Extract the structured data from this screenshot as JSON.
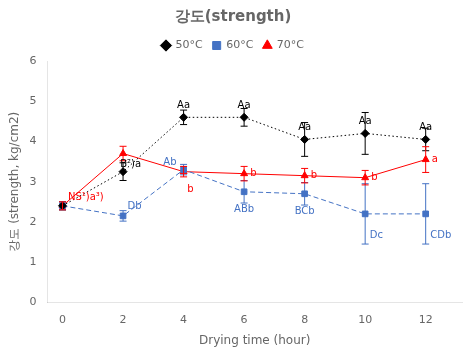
{
  "chart_data": {
    "type": "line",
    "title": "강도(strength)",
    "x_label": "Drying time (hour)",
    "y_label": "강도 (strength, kg/cm2)",
    "x": [
      0,
      2,
      4,
      6,
      8,
      10,
      12
    ],
    "series": [
      {
        "name": "50°C",
        "color": "#000000",
        "marker": "diamond",
        "line_style": "dotted",
        "values": [
          2.4,
          3.25,
          4.6,
          4.6,
          4.05,
          4.2,
          4.05
        ],
        "errors": [
          0.1,
          0.22,
          0.18,
          0.22,
          0.42,
          0.52,
          0.28
        ]
      },
      {
        "name": "60°C",
        "color": "#4472c4",
        "marker": "square",
        "line_style": "dashed",
        "values": [
          2.4,
          2.15,
          3.3,
          2.75,
          2.7,
          2.2,
          2.2
        ],
        "errors": [
          0.1,
          0.13,
          0.13,
          0.28,
          0.28,
          0.75,
          0.75
        ]
      },
      {
        "name": "70°C",
        "color": "#ff0000",
        "marker": "triangle",
        "line_style": "solid",
        "values": [
          2.4,
          3.7,
          3.25,
          3.2,
          3.15,
          3.1,
          3.55
        ],
        "errors": [
          0.1,
          0.18,
          0.13,
          0.18,
          0.18,
          0.18,
          0.32
        ]
      }
    ],
    "annotations": [
      {
        "text": "B²)a",
        "x": 2,
        "y": 3.25,
        "color": "#000000"
      },
      {
        "text": "Aa",
        "x": 4,
        "y": 4.6,
        "color": "#000000"
      },
      {
        "text": "Aa",
        "x": 6,
        "y": 4.6,
        "color": "#000000"
      },
      {
        "text": "Aa",
        "x": 8,
        "y": 4.05,
        "color": "#000000"
      },
      {
        "text": "Aa",
        "x": 10,
        "y": 4.2,
        "color": "#000000"
      },
      {
        "text": "Aa",
        "x": 12,
        "y": 4.05,
        "color": "#000000"
      },
      {
        "text": "Db",
        "x": 2,
        "y": 2.15,
        "color": "#4472c4"
      },
      {
        "text": "Ab",
        "x": 4,
        "y": 3.3,
        "color": "#4472c4"
      },
      {
        "text": "ABb",
        "x": 6,
        "y": 2.75,
        "color": "#4472c4"
      },
      {
        "text": "BCb",
        "x": 8,
        "y": 2.7,
        "color": "#4472c4"
      },
      {
        "text": "Dc",
        "x": 10,
        "y": 2.2,
        "color": "#4472c4"
      },
      {
        "text": "CDb",
        "x": 12,
        "y": 2.2,
        "color": "#4472c4"
      },
      {
        "text": "NS¹)a³)",
        "x": 0,
        "y": 2.4,
        "color": "#ff0000"
      },
      {
        "text": "b",
        "x": 4,
        "y": 3.25,
        "color": "#ff0000"
      },
      {
        "text": "b",
        "x": 6,
        "y": 3.2,
        "color": "#ff0000"
      },
      {
        "text": "b",
        "x": 8,
        "y": 3.15,
        "color": "#ff0000"
      },
      {
        "text": "b",
        "x": 10,
        "y": 3.1,
        "color": "#ff0000"
      },
      {
        "text": "a",
        "x": 12,
        "y": 3.55,
        "color": "#ff0000"
      }
    ],
    "xlim": [
      -0.5,
      13.2
    ],
    "xticks": [
      0,
      2,
      4,
      6,
      8,
      10,
      12
    ],
    "ylim": [
      0,
      6
    ],
    "yticks": [
      0,
      1,
      2,
      3,
      4,
      5,
      6
    ],
    "grid": false,
    "legend": "top"
  }
}
